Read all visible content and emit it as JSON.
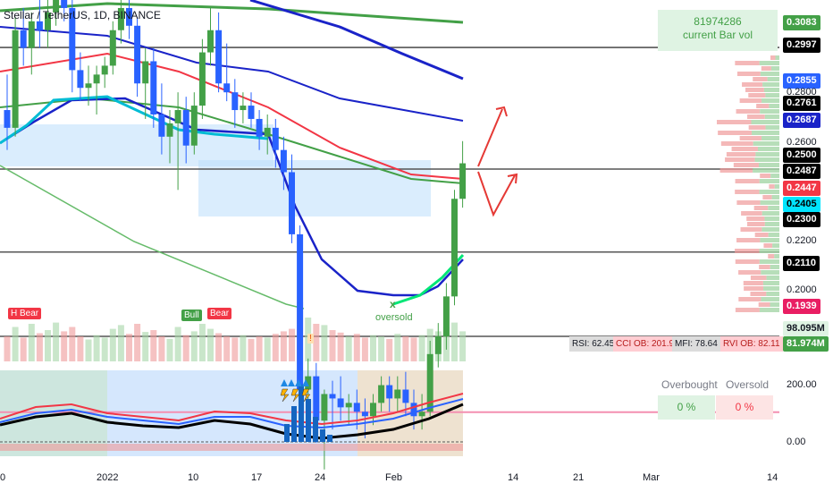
{
  "chart_title": "Stellar / TetherUS, 1D, BINANCE",
  "volume_box": {
    "value": "81974286",
    "label": "current Bar vol"
  },
  "price_tags": [
    {
      "label": "0.3083",
      "bg": "#43a047",
      "fg": "#ffffff"
    },
    {
      "label": "0.2997",
      "bg": "#000000",
      "fg": "#ffffff"
    },
    {
      "label": "0.2855",
      "bg": "#2962ff",
      "fg": "#ffffff"
    },
    {
      "label": "0.2761",
      "bg": "#000000",
      "fg": "#ffffff"
    },
    {
      "label": "0.2687",
      "bg": "#1a23c8",
      "fg": "#ffffff"
    },
    {
      "label": "0.2500",
      "bg": "#000000",
      "fg": "#ffffff"
    },
    {
      "label": "0.2487",
      "bg": "#000000",
      "fg": "#ffffff"
    },
    {
      "label": "0.2447",
      "bg": "#f23645",
      "fg": "#ffffff"
    },
    {
      "label": "0.2405",
      "bg": "#00e5ff",
      "fg": "#000000"
    },
    {
      "label": "0.2300",
      "bg": "#000000",
      "fg": "#ffffff"
    },
    {
      "label": "0.2110",
      "bg": "#000000",
      "fg": "#ffffff"
    },
    {
      "label": "0.1939",
      "bg": "#e91e63",
      "fg": "#ffffff"
    },
    {
      "label": "98.095M",
      "bg": "#dff3e3",
      "fg": "#131722"
    },
    {
      "label": "81.974M",
      "bg": "#43a047",
      "fg": "#ffffff"
    }
  ],
  "price_axis_labels": [
    "0.2800",
    "0.2600",
    "0.2200",
    "0.2000"
  ],
  "oscillator_axis_labels": [
    "200.00",
    "0.00"
  ],
  "x_axis_labels": [
    "0",
    "2022",
    "10",
    "17",
    "24",
    "Feb",
    "14",
    "21",
    "Mar",
    "14"
  ],
  "signals": {
    "h_bear": "H Bear",
    "bull": "Bull",
    "bear": "Bear",
    "oversold": "oversold",
    "x_mark": "x",
    "warn": "!"
  },
  "stats": [
    {
      "label": "RSI: 62.45",
      "bg": "#dcdcdc",
      "fg": "#131722"
    },
    {
      "label": "CCI OB: 201.94",
      "bg": "#ffcdd2",
      "fg": "#b71c1c"
    },
    {
      "label": "MFI: 78.64",
      "bg": "#dcdcdc",
      "fg": "#131722"
    },
    {
      "label": "RVI OB: 82.11",
      "bg": "#ffcdd2",
      "fg": "#b71c1c"
    }
  ],
  "overbought_oversold": {
    "overbought_label": "Overbought",
    "oversold_label": "Oversold",
    "overbought_value": "0 %",
    "oversold_value": "0 %"
  },
  "colors": {
    "up": "#43a047",
    "down": "#2962ff",
    "line_dark": "#131722",
    "ma_red": "#f23645",
    "ma_blue": "#1a23c8",
    "ma_green": "#43a047"
  },
  "chart_data": {
    "type": "candlestick",
    "symbol": "Stellar / TetherUS",
    "interval": "1D",
    "exchange": "BINANCE",
    "ylim": [
      0.178,
      0.316
    ],
    "horizontal_levels": [
      0.2997,
      0.2761,
      0.2487,
      0.23,
      0.211,
      0.1939
    ],
    "candles": [
      {
        "o": 0.262,
        "h": 0.27,
        "l": 0.253,
        "c": 0.258
      },
      {
        "o": 0.258,
        "h": 0.283,
        "l": 0.256,
        "c": 0.28
      },
      {
        "o": 0.28,
        "h": 0.285,
        "l": 0.272,
        "c": 0.276
      },
      {
        "o": 0.276,
        "h": 0.284,
        "l": 0.27,
        "c": 0.282
      },
      {
        "o": 0.282,
        "h": 0.29,
        "l": 0.276,
        "c": 0.28
      },
      {
        "o": 0.28,
        "h": 0.287,
        "l": 0.276,
        "c": 0.284
      },
      {
        "o": 0.284,
        "h": 0.296,
        "l": 0.281,
        "c": 0.292
      },
      {
        "o": 0.292,
        "h": 0.296,
        "l": 0.282,
        "c": 0.285
      },
      {
        "o": 0.285,
        "h": 0.287,
        "l": 0.266,
        "c": 0.271
      },
      {
        "o": 0.271,
        "h": 0.275,
        "l": 0.264,
        "c": 0.267
      },
      {
        "o": 0.267,
        "h": 0.272,
        "l": 0.263,
        "c": 0.268
      },
      {
        "o": 0.268,
        "h": 0.272,
        "l": 0.261,
        "c": 0.27
      },
      {
        "o": 0.27,
        "h": 0.274,
        "l": 0.267,
        "c": 0.272
      },
      {
        "o": 0.272,
        "h": 0.282,
        "l": 0.27,
        "c": 0.28
      },
      {
        "o": 0.28,
        "h": 0.287,
        "l": 0.277,
        "c": 0.285
      },
      {
        "o": 0.285,
        "h": 0.288,
        "l": 0.278,
        "c": 0.281
      },
      {
        "o": 0.281,
        "h": 0.283,
        "l": 0.265,
        "c": 0.268
      },
      {
        "o": 0.268,
        "h": 0.276,
        "l": 0.26,
        "c": 0.273
      },
      {
        "o": 0.273,
        "h": 0.276,
        "l": 0.258,
        "c": 0.261
      },
      {
        "o": 0.261,
        "h": 0.268,
        "l": 0.252,
        "c": 0.256
      },
      {
        "o": 0.256,
        "h": 0.262,
        "l": 0.25,
        "c": 0.259
      },
      {
        "o": 0.259,
        "h": 0.266,
        "l": 0.244,
        "c": 0.262
      },
      {
        "o": 0.262,
        "h": 0.265,
        "l": 0.25,
        "c": 0.254
      },
      {
        "o": 0.254,
        "h": 0.266,
        "l": 0.252,
        "c": 0.263
      },
      {
        "o": 0.263,
        "h": 0.278,
        "l": 0.26,
        "c": 0.275
      },
      {
        "o": 0.275,
        "h": 0.285,
        "l": 0.272,
        "c": 0.28
      },
      {
        "o": 0.28,
        "h": 0.284,
        "l": 0.266,
        "c": 0.268
      },
      {
        "o": 0.268,
        "h": 0.277,
        "l": 0.264,
        "c": 0.266
      },
      {
        "o": 0.266,
        "h": 0.269,
        "l": 0.258,
        "c": 0.262
      },
      {
        "o": 0.262,
        "h": 0.266,
        "l": 0.259,
        "c": 0.263
      },
      {
        "o": 0.263,
        "h": 0.266,
        "l": 0.258,
        "c": 0.26
      },
      {
        "o": 0.26,
        "h": 0.262,
        "l": 0.253,
        "c": 0.256
      },
      {
        "o": 0.256,
        "h": 0.261,
        "l": 0.252,
        "c": 0.258
      },
      {
        "o": 0.258,
        "h": 0.26,
        "l": 0.249,
        "c": 0.253
      },
      {
        "o": 0.253,
        "h": 0.256,
        "l": 0.244,
        "c": 0.248
      },
      {
        "o": 0.248,
        "h": 0.252,
        "l": 0.232,
        "c": 0.234
      },
      {
        "o": 0.234,
        "h": 0.236,
        "l": 0.192,
        "c": 0.199
      },
      {
        "o": 0.199,
        "h": 0.206,
        "l": 0.19,
        "c": 0.202
      },
      {
        "o": 0.202,
        "h": 0.205,
        "l": 0.187,
        "c": 0.192
      },
      {
        "o": 0.192,
        "h": 0.199,
        "l": 0.181,
        "c": 0.198
      },
      {
        "o": 0.198,
        "h": 0.201,
        "l": 0.19,
        "c": 0.197
      },
      {
        "o": 0.197,
        "h": 0.202,
        "l": 0.192,
        "c": 0.195
      },
      {
        "o": 0.195,
        "h": 0.198,
        "l": 0.191,
        "c": 0.196
      },
      {
        "o": 0.196,
        "h": 0.199,
        "l": 0.19,
        "c": 0.194
      },
      {
        "o": 0.194,
        "h": 0.197,
        "l": 0.188,
        "c": 0.193
      },
      {
        "o": 0.193,
        "h": 0.198,
        "l": 0.191,
        "c": 0.196
      },
      {
        "o": 0.196,
        "h": 0.202,
        "l": 0.194,
        "c": 0.2
      },
      {
        "o": 0.2,
        "h": 0.202,
        "l": 0.194,
        "c": 0.197
      },
      {
        "o": 0.197,
        "h": 0.202,
        "l": 0.194,
        "c": 0.199
      },
      {
        "o": 0.199,
        "h": 0.203,
        "l": 0.193,
        "c": 0.196
      },
      {
        "o": 0.196,
        "h": 0.199,
        "l": 0.19,
        "c": 0.193
      },
      {
        "o": 0.193,
        "h": 0.198,
        "l": 0.19,
        "c": 0.194
      },
      {
        "o": 0.194,
        "h": 0.21,
        "l": 0.193,
        "c": 0.207
      },
      {
        "o": 0.207,
        "h": 0.214,
        "l": 0.204,
        "c": 0.211
      },
      {
        "o": 0.211,
        "h": 0.223,
        "l": 0.208,
        "c": 0.22
      },
      {
        "o": 0.22,
        "h": 0.244,
        "l": 0.218,
        "c": 0.242
      },
      {
        "o": 0.242,
        "h": 0.255,
        "l": 0.24,
        "c": 0.25
      }
    ]
  }
}
